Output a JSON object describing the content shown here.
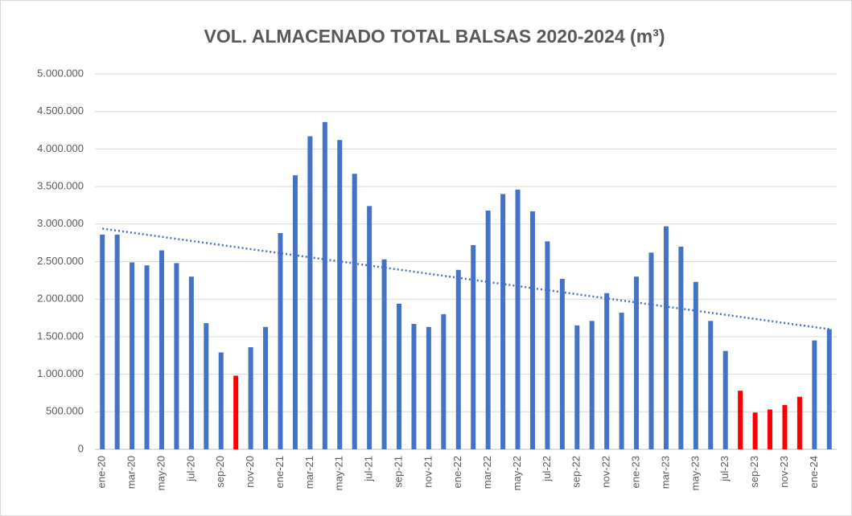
{
  "chart_data": {
    "type": "bar",
    "title": "VOL. ALMACENADO TOTAL BALSAS 2020-2024 (m³)",
    "categories": [
      "ene-20",
      null,
      "mar-20",
      null,
      "may-20",
      null,
      "jul-20",
      null,
      "sep-20",
      null,
      "nov-20",
      null,
      "ene-21",
      null,
      "mar-21",
      null,
      "may-21",
      null,
      "jul-21",
      null,
      "sep-21",
      null,
      "nov-21",
      null,
      "ene-22",
      null,
      "mar-22",
      null,
      "may-22",
      null,
      "jul-22",
      null,
      "sep-22",
      null,
      "nov-22",
      null,
      "ene-23",
      null,
      "mar-23",
      null,
      "may-23",
      null,
      "jul-23",
      null,
      "sep-23",
      null,
      "nov-23",
      null,
      "ene-24",
      null
    ],
    "values": [
      2860000,
      2860000,
      2490000,
      2450000,
      2650000,
      2480000,
      2300000,
      1680000,
      1290000,
      980000,
      1360000,
      1630000,
      2880000,
      3650000,
      4170000,
      4360000,
      4120000,
      3670000,
      3240000,
      2530000,
      1940000,
      1670000,
      1630000,
      1800000,
      2390000,
      2720000,
      3180000,
      3400000,
      3460000,
      3170000,
      2770000,
      2270000,
      1650000,
      1710000,
      2080000,
      1820000,
      2300000,
      2620000,
      2970000,
      2700000,
      2230000,
      1710000,
      1310000,
      780000,
      490000,
      530000,
      590000,
      700000,
      1450000,
      1600000
    ],
    "colors": [
      "#4472c4",
      "#4472c4",
      "#4472c4",
      "#4472c4",
      "#4472c4",
      "#4472c4",
      "#4472c4",
      "#4472c4",
      "#4472c4",
      "#ff0000",
      "#4472c4",
      "#4472c4",
      "#4472c4",
      "#4472c4",
      "#4472c4",
      "#4472c4",
      "#4472c4",
      "#4472c4",
      "#4472c4",
      "#4472c4",
      "#4472c4",
      "#4472c4",
      "#4472c4",
      "#4472c4",
      "#4472c4",
      "#4472c4",
      "#4472c4",
      "#4472c4",
      "#4472c4",
      "#4472c4",
      "#4472c4",
      "#4472c4",
      "#4472c4",
      "#4472c4",
      "#4472c4",
      "#4472c4",
      "#4472c4",
      "#4472c4",
      "#4472c4",
      "#4472c4",
      "#4472c4",
      "#4472c4",
      "#4472c4",
      "#ff0000",
      "#ff0000",
      "#ff0000",
      "#ff0000",
      "#ff0000",
      "#4472c4",
      "#4472c4"
    ],
    "trendline": {
      "color": "#4472c4",
      "start": 2940000,
      "end": 1600000
    },
    "ylim": [
      0,
      5000000
    ],
    "yticks": [
      0,
      {
        "value": 500000,
        "label": "500.000"
      },
      {
        "value": 1000000,
        "label": "1.000.000"
      },
      {
        "value": 1500000,
        "label": "1.500.000"
      },
      {
        "value": 2000000,
        "label": "2.000.000"
      },
      {
        "value": 2500000,
        "label": "2.500.000"
      },
      {
        "value": 3000000,
        "label": "3.000.000"
      },
      {
        "value": 3500000,
        "label": "3.500.000"
      },
      {
        "value": 4000000,
        "label": "4.000.000"
      },
      {
        "value": 4500000,
        "label": "4.500.000"
      },
      {
        "value": 5000000,
        "label": "5.000.000"
      }
    ],
    "grid": true
  }
}
